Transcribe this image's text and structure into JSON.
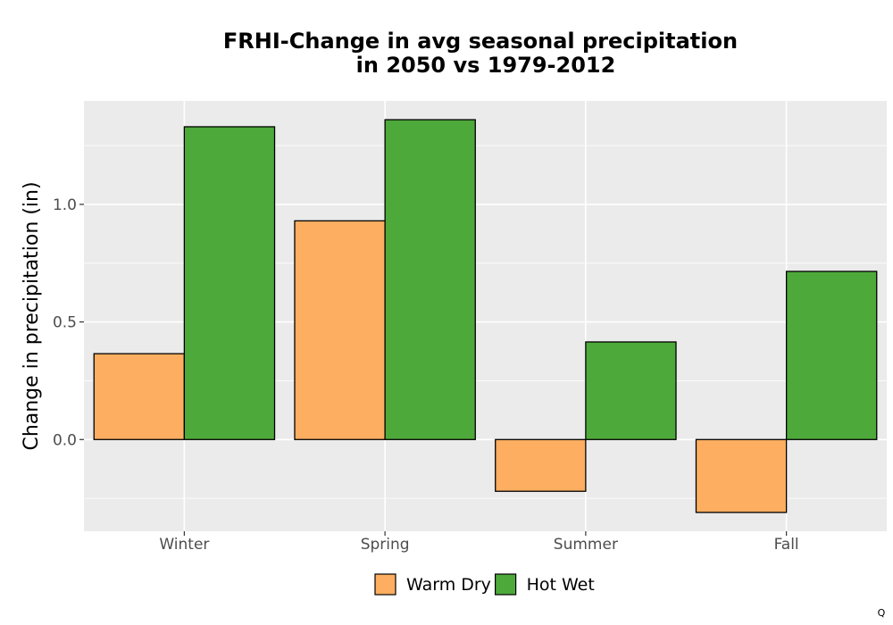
{
  "chart_data": {
    "type": "bar",
    "title_lines": [
      "FRHI-Change in avg seasonal precipitation",
      "in 2050 vs 1979-2012"
    ],
    "xlabel": "",
    "ylabel": "Change in precipitation (in)",
    "categories": [
      "Winter",
      "Spring",
      "Summer",
      "Fall"
    ],
    "series": [
      {
        "name": "Warm Dry",
        "color": "#fdae61",
        "values": [
          0.365,
          0.93,
          -0.22,
          -0.31
        ]
      },
      {
        "name": "Hot Wet",
        "color": "#4ea93b",
        "values": [
          1.33,
          1.36,
          0.415,
          0.715
        ]
      }
    ],
    "ylim": [
      -0.39,
      1.44
    ],
    "yticks": [
      0.0,
      0.5,
      1.0
    ],
    "ytick_labels": [
      "0.0",
      "0.5",
      "1.0"
    ],
    "grid": true,
    "panel_background": "#ebebeb",
    "legend_position": "bottom"
  },
  "corner_mark": "Q"
}
